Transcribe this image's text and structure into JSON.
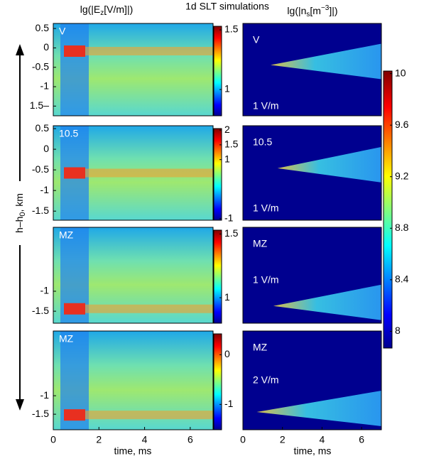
{
  "title_left": [
    "lg(|E",
    "z",
    "[V/m]|)"
  ],
  "title_center": "1d SLT simulations",
  "title_right": [
    "lg(|n",
    "s",
    "[m",
    "−3",
    "]|)"
  ],
  "y_label": [
    "h–h",
    "0",
    ", km"
  ],
  "x_label": "time, ms",
  "shared_colorbar": {
    "lim": [
      7.87,
      10.02
    ],
    "ticks": [
      10,
      9.6,
      9.2,
      8.8,
      8.4,
      8
    ]
  },
  "chart_data": [
    {
      "type": "heatmap",
      "panel_label": "V",
      "xlim": [
        0,
        7
      ],
      "ylim": [
        -1.75,
        0.63
      ],
      "yticks": [
        0.5,
        0,
        -0.5,
        -1,
        {
          "value": -1.5,
          "label": "1.5–"
        }
      ],
      "colorbar": {
        "lim": [
          0.78,
          1.53
        ],
        "ticks": [
          1.5,
          1
        ]
      }
    },
    {
      "type": "heatmap",
      "panel_label": "10.5",
      "xlim": [
        0,
        7
      ],
      "ylim": [
        -1.72,
        0.57
      ],
      "yticks": [
        0.5,
        0,
        -0.5,
        -1,
        -1.5
      ],
      "colorbar": {
        "lim": [
          -1.05,
          2.05
        ],
        "ticks": [
          2,
          1.5,
          1,
          -1
        ]
      }
    },
    {
      "type": "heatmap",
      "panel_label": "MZ",
      "xlim": [
        0,
        7
      ],
      "ylim": [
        -1.8,
        0.6
      ],
      "yticks": [
        -1,
        -1.5
      ],
      "colorbar": {
        "lim": [
          0.8,
          1.53
        ],
        "ticks": [
          1.5,
          1
        ]
      }
    },
    {
      "type": "heatmap",
      "panel_label": "MZ",
      "xlim": [
        0,
        7
      ],
      "ylim": [
        -1.92,
        0.75
      ],
      "xticks": [
        0,
        2,
        4,
        6
      ],
      "yticks": [
        -1,
        -1.5
      ],
      "colorbar": {
        "lim": [
          -1.51,
          0.42
        ],
        "ticks": [
          0,
          -1
        ]
      }
    },
    {
      "type": "heatmap",
      "panel_label": "V",
      "annotation": "1 V/m",
      "xlim": [
        0,
        7
      ]
    },
    {
      "type": "heatmap",
      "panel_label": "10.5",
      "annotation": "1 V/m",
      "xlim": [
        0,
        7
      ]
    },
    {
      "type": "heatmap",
      "panel_label": "MZ",
      "annotation": "1 V/m",
      "xlim": [
        0,
        7
      ]
    },
    {
      "type": "heatmap",
      "panel_label": "MZ",
      "annotation": "2 V/m",
      "xlim": [
        0,
        7
      ],
      "xticks": [
        0,
        2,
        4,
        6
      ]
    }
  ]
}
